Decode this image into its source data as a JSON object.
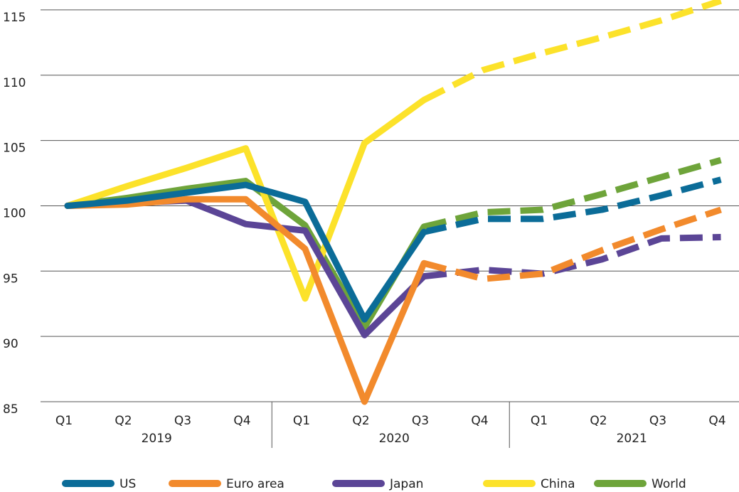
{
  "chart_data": {
    "type": "line",
    "categories": [
      "Q1",
      "Q2",
      "Q3",
      "Q4",
      "Q1",
      "Q2",
      "Q3",
      "Q4",
      "Q1",
      "Q2",
      "Q3",
      "Q4"
    ],
    "years": [
      "2019",
      "2020",
      "2021"
    ],
    "dashed_from_index": 6,
    "ylim": [
      85,
      116
    ],
    "yticks": [
      85,
      90,
      95,
      100,
      105,
      110,
      115
    ],
    "grid": true,
    "legend": "bottom",
    "series": [
      {
        "name": "US",
        "color": "#0b6c98",
        "values": [
          100,
          100.4,
          101,
          101.6,
          100.3,
          91.3,
          98,
          99,
          99,
          99.7,
          100.8,
          102
        ]
      },
      {
        "name": "Euro area",
        "color": "#f28a2c",
        "values": [
          100,
          100.1,
          100.5,
          100.5,
          96.7,
          85,
          95.6,
          94.4,
          94.8,
          96.6,
          98.2,
          99.7
        ]
      },
      {
        "name": "Japan",
        "color": "#5b4596",
        "values": [
          100,
          100.2,
          100.4,
          98.6,
          98.1,
          90.1,
          94.6,
          95.1,
          94.8,
          95.9,
          97.5,
          97.6
        ]
      },
      {
        "name": "China",
        "color": "#fce22a",
        "values": [
          100,
          101.5,
          102.9,
          104.4,
          92.9,
          104.8,
          108.1,
          110.4,
          111.7,
          112.9,
          114.2,
          115.7
        ]
      },
      {
        "name": "World",
        "color": "#6ea43a",
        "values": [
          100,
          100.6,
          101.3,
          101.9,
          98.5,
          90.7,
          98.4,
          99.5,
          99.7,
          100.9,
          102.2,
          103.5
        ]
      }
    ]
  }
}
